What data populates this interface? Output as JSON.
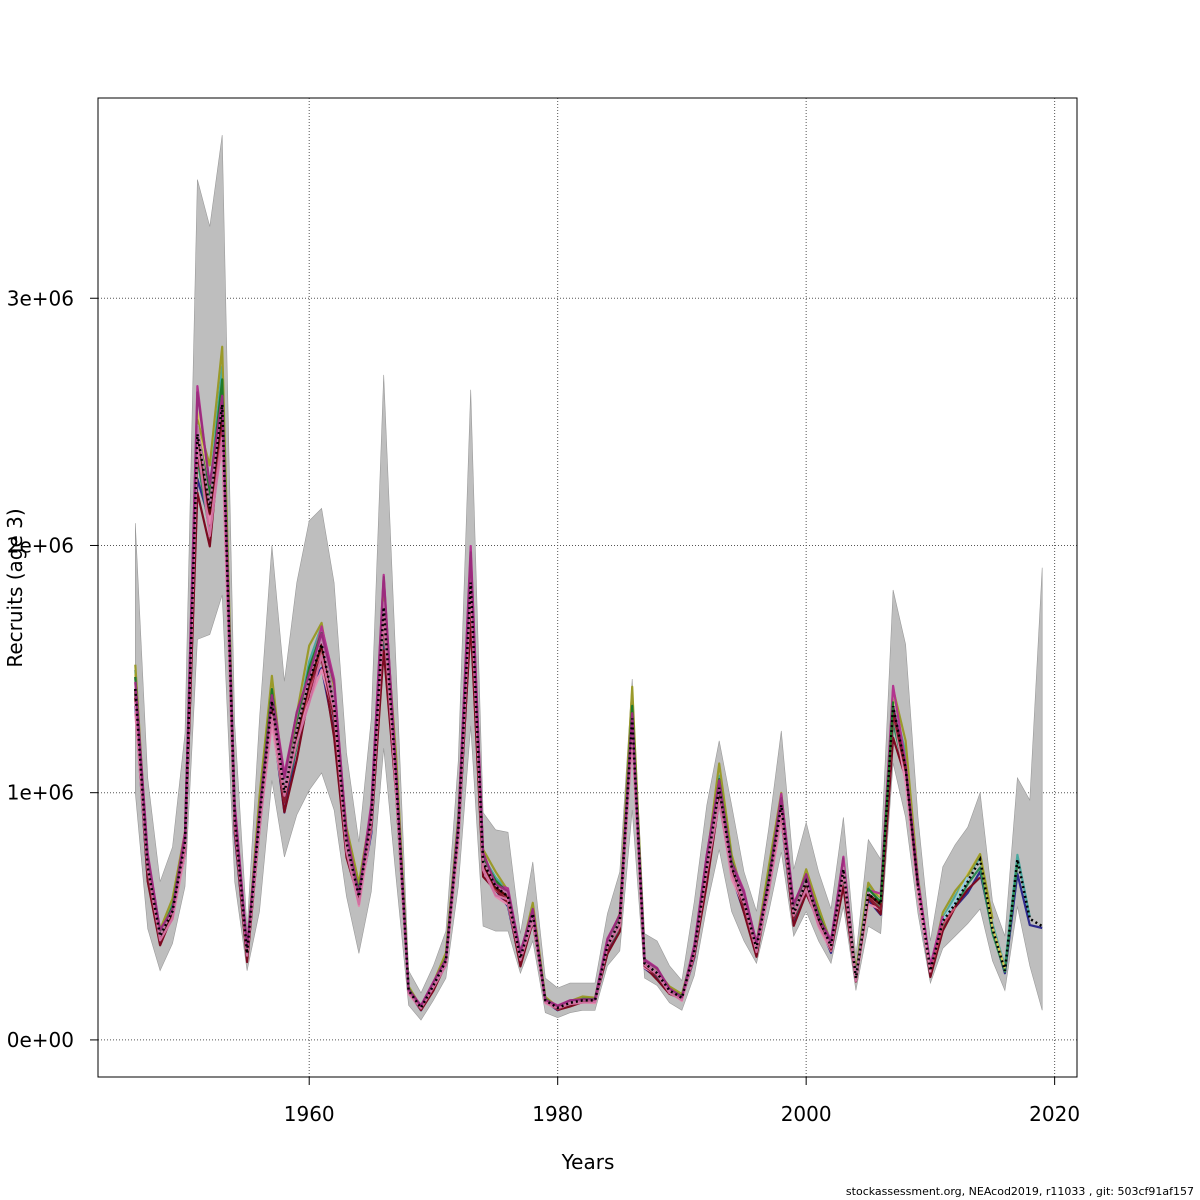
{
  "chart_data": {
    "type": "line",
    "title": "",
    "xlabel": "Years",
    "ylabel": "Recruits (age 3)",
    "xlim": [
      1943,
      2021.8
    ],
    "ylim": [
      -150000,
      3810000
    ],
    "x_ticks": [
      1960,
      1980,
      2000,
      2020
    ],
    "x_tick_labels": [
      "1960",
      "1980",
      "2000",
      "2020"
    ],
    "y_ticks": [
      0,
      1000000,
      2000000,
      3000000
    ],
    "y_tick_labels": [
      "0e+00",
      "1e+06",
      "2e+06",
      "3e+06"
    ],
    "grid": true,
    "legend": "none",
    "years": [
      1946,
      1947,
      1948,
      1949,
      1950,
      1951,
      1952,
      1953,
      1954,
      1955,
      1956,
      1957,
      1958,
      1959,
      1960,
      1961,
      1962,
      1963,
      1964,
      1965,
      1966,
      1967,
      1968,
      1969,
      1970,
      1971,
      1972,
      1973,
      1974,
      1975,
      1976,
      1977,
      1978,
      1979,
      1980,
      1981,
      1982,
      1983,
      1984,
      1985,
      1986,
      1987,
      1988,
      1989,
      1990,
      1991,
      1992,
      1993,
      1994,
      1995,
      1996,
      1997,
      1998,
      1999,
      2000,
      2001,
      2002,
      2003,
      2004,
      2005,
      2006,
      2007,
      2008,
      2009,
      2010,
      2011,
      2012,
      2013,
      2014,
      2015,
      2016,
      2017,
      2018,
      2019
    ],
    "estimate": [
      1420000,
      700000,
      420000,
      520000,
      800000,
      2450000,
      2150000,
      2570000,
      900000,
      350000,
      900000,
      1370000,
      1000000,
      1250000,
      1450000,
      1600000,
      1350000,
      800000,
      580000,
      900000,
      1750000,
      1050000,
      200000,
      130000,
      220000,
      320000,
      850000,
      1850000,
      720000,
      620000,
      580000,
      330000,
      510000,
      160000,
      130000,
      150000,
      160000,
      160000,
      380000,
      480000,
      1300000,
      310000,
      270000,
      200000,
      170000,
      360000,
      700000,
      1020000,
      700000,
      560000,
      370000,
      640000,
      950000,
      510000,
      640000,
      490000,
      380000,
      690000,
      250000,
      590000,
      550000,
      1350000,
      1100000,
      620000,
      280000,
      480000,
      550000,
      640000,
      730000,
      450000,
      280000,
      730000,
      490000,
      460000
    ],
    "ci_low": [
      1000000,
      450000,
      280000,
      390000,
      620000,
      1620000,
      1640000,
      1800000,
      640000,
      280000,
      520000,
      1050000,
      740000,
      910000,
      1010000,
      1080000,
      930000,
      580000,
      350000,
      600000,
      1180000,
      650000,
      140000,
      80000,
      160000,
      250000,
      620000,
      1270000,
      460000,
      440000,
      440000,
      270000,
      400000,
      110000,
      90000,
      110000,
      120000,
      120000,
      300000,
      360000,
      930000,
      250000,
      220000,
      150000,
      120000,
      260000,
      540000,
      770000,
      520000,
      400000,
      310000,
      520000,
      760000,
      420000,
      520000,
      400000,
      310000,
      540000,
      200000,
      460000,
      430000,
      1120000,
      900000,
      510000,
      230000,
      370000,
      420000,
      470000,
      530000,
      320000,
      200000,
      540000,
      300000,
      120000
    ],
    "ci_high": [
      2090000,
      1060000,
      640000,
      780000,
      1240000,
      3480000,
      3290000,
      3660000,
      1280000,
      450000,
      1300000,
      2000000,
      1450000,
      1850000,
      2100000,
      2150000,
      1850000,
      1160000,
      800000,
      1300000,
      2690000,
      1500000,
      280000,
      190000,
      300000,
      440000,
      1130000,
      2630000,
      920000,
      850000,
      840000,
      430000,
      720000,
      250000,
      210000,
      230000,
      230000,
      230000,
      510000,
      680000,
      1460000,
      430000,
      400000,
      300000,
      240000,
      560000,
      950000,
      1210000,
      950000,
      680000,
      520000,
      860000,
      1250000,
      690000,
      880000,
      680000,
      530000,
      900000,
      340000,
      810000,
      730000,
      1820000,
      1600000,
      900000,
      400000,
      700000,
      790000,
      860000,
      1000000,
      560000,
      420000,
      1060000,
      970000,
      1910000
    ],
    "estimate_color": "#000000",
    "ci_color": "#bebebe",
    "retro_colors": [
      "#2d2a8c",
      "#4aa9a0",
      "#2e8b57",
      "#d9c85a",
      "#9a9a2a",
      "#7a0a20",
      "#8fcbe8",
      "#c94d6a",
      "#b3338f",
      "#e38ab0",
      "#6b0f4c",
      "#8a1a30",
      "#1f7a2a",
      "#5a0a0a",
      "#c07aa8",
      "#d070a0",
      "#9b2c7d"
    ],
    "retro_years_dropped": [
      0,
      1,
      2,
      3,
      4,
      5,
      6,
      7,
      8,
      9,
      10,
      11,
      12,
      13,
      14,
      15,
      16
    ],
    "retro_factors": [
      0.92,
      1.06,
      0.95,
      1.05,
      1.1,
      0.9,
      1.03,
      0.97,
      1.08,
      0.93,
      1.0,
      0.96,
      1.04,
      0.99,
      1.02,
      0.94,
      1.07
    ]
  },
  "footer": "stockassessment.org, NEAcod2019, r11033 , git: 503cf91af157"
}
